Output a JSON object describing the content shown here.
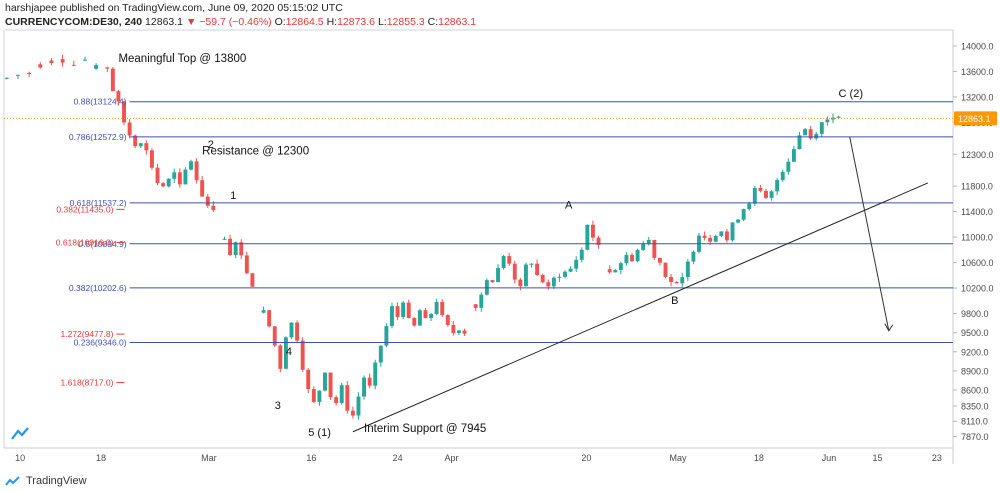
{
  "header": {
    "line1": "harshjapee published on TradingView.com, June 09, 2020 05:15:02 UTC",
    "symbol": "CURRENCYCOM:DE30, 240",
    "last": "12863.1",
    "change_arrow": "▼",
    "change": "−59.7 (−0.46%)",
    "o_label": "O:",
    "o": "12864.5",
    "h_label": "H:",
    "h": "12873.6",
    "l_label": "L:",
    "l": "12855.3",
    "c_label": "C:",
    "c": "12863.1"
  },
  "footer": {
    "brand": "TradingView"
  },
  "chart_data": {
    "type": "candlestick",
    "interval": "240",
    "ylim": [
      7690,
      14250
    ],
    "y_ticks": [
      14000,
      13600,
      13200,
      12800,
      12300,
      11800,
      11400,
      11000,
      10600,
      10200,
      9800,
      9500,
      9200,
      8900,
      8600,
      8350,
      8110,
      7870
    ],
    "y_tick_labels": [
      "14000.0",
      "13600.0",
      "13200.0",
      "12800.0",
      "12300.0",
      "11800.0",
      "11400.0",
      "11000.0",
      "10600.0",
      "10200.0",
      "9800.0",
      "9500.0",
      "9200.0",
      "8900.0",
      "8600.0",
      "8350.0",
      "8110.0",
      "7870.0"
    ],
    "x_ticks": [
      "10",
      "18",
      "Mar",
      "16",
      "24",
      "Apr",
      "20",
      "May",
      "18",
      "Jun",
      "15",
      "23"
    ],
    "last_price_label": "12863.1",
    "last_price": 12863.1,
    "colors": {
      "up": "#26a69a",
      "down": "#ef5350",
      "blue_level": "#3f51b5",
      "red_level": "#e53935",
      "last": "#ff9800",
      "trend": "#222222"
    },
    "close_path": [
      [
        0,
        13500
      ],
      [
        2,
        13550
      ],
      [
        4,
        13560
      ],
      [
        6,
        13650
      ],
      [
        8,
        13720
      ],
      [
        10,
        13760
      ],
      [
        12,
        13720
      ],
      [
        14,
        13790
      ],
      [
        16,
        13720
      ],
      [
        18,
        13640
      ],
      [
        19,
        13300
      ],
      [
        20,
        13100
      ],
      [
        21,
        12800
      ],
      [
        22,
        12600
      ],
      [
        23,
        12450
      ],
      [
        24,
        12500
      ],
      [
        25,
        12350
      ],
      [
        26,
        12100
      ],
      [
        27,
        11850
      ],
      [
        28,
        11800
      ],
      [
        29,
        11900
      ],
      [
        30,
        12000
      ],
      [
        31,
        11800
      ],
      [
        32,
        12050
      ],
      [
        33,
        12200
      ],
      [
        34,
        11900
      ],
      [
        35,
        11650
      ],
      [
        36,
        11500
      ],
      [
        37,
        11450
      ],
      [
        39,
        10950
      ],
      [
        40,
        10700
      ],
      [
        41,
        10950
      ],
      [
        42,
        10700
      ],
      [
        43,
        10450
      ],
      [
        44,
        10250
      ],
      [
        46,
        9850
      ],
      [
        47,
        9600
      ],
      [
        48,
        9300
      ],
      [
        49,
        8950
      ],
      [
        50,
        9450
      ],
      [
        51,
        9650
      ],
      [
        52,
        9400
      ],
      [
        53,
        8950
      ],
      [
        54,
        8600
      ],
      [
        55,
        8400
      ],
      [
        56,
        8600
      ],
      [
        57,
        8900
      ],
      [
        58,
        8500
      ],
      [
        59,
        8400
      ],
      [
        60,
        8650
      ],
      [
        61,
        8300
      ],
      [
        62,
        8200
      ],
      [
        63,
        8500
      ],
      [
        64,
        8800
      ],
      [
        65,
        8650
      ],
      [
        66,
        9000
      ],
      [
        67,
        9300
      ],
      [
        68,
        9600
      ],
      [
        69,
        9900
      ],
      [
        70,
        9750
      ],
      [
        71,
        10000
      ],
      [
        72,
        9700
      ],
      [
        73,
        9600
      ],
      [
        74,
        9850
      ],
      [
        75,
        9700
      ],
      [
        76,
        9800
      ],
      [
        77,
        10000
      ],
      [
        78,
        9750
      ],
      [
        79,
        9600
      ],
      [
        80,
        9500
      ],
      [
        81,
        9560
      ],
      [
        82,
        9500
      ],
      [
        84,
        9900
      ],
      [
        85,
        10100
      ],
      [
        86,
        10350
      ],
      [
        87,
        10300
      ],
      [
        88,
        10500
      ],
      [
        89,
        10700
      ],
      [
        90,
        10600
      ],
      [
        91,
        10350
      ],
      [
        92,
        10200
      ],
      [
        93,
        10550
      ],
      [
        94,
        10600
      ],
      [
        95,
        10400
      ],
      [
        96,
        10300
      ],
      [
        97,
        10200
      ],
      [
        98,
        10350
      ],
      [
        99,
        10400
      ],
      [
        100,
        10450
      ],
      [
        101,
        10500
      ],
      [
        102,
        10650
      ],
      [
        103,
        10800
      ],
      [
        104,
        11200
      ],
      [
        105,
        11000
      ],
      [
        106,
        10850
      ],
      [
        108,
        10450
      ],
      [
        109,
        10500
      ],
      [
        110,
        10600
      ],
      [
        111,
        10700
      ],
      [
        112,
        10650
      ],
      [
        113,
        10800
      ],
      [
        114,
        10900
      ],
      [
        115,
        10950
      ],
      [
        116,
        10700
      ],
      [
        117,
        10600
      ],
      [
        118,
        10400
      ],
      [
        119,
        10300
      ],
      [
        120,
        10250
      ],
      [
        121,
        10350
      ],
      [
        122,
        10600
      ],
      [
        123,
        10800
      ],
      [
        124,
        11050
      ],
      [
        125,
        11000
      ],
      [
        126,
        10950
      ],
      [
        127,
        11050
      ],
      [
        128,
        11100
      ],
      [
        129,
        10950
      ],
      [
        130,
        11200
      ],
      [
        131,
        11300
      ],
      [
        132,
        11450
      ],
      [
        133,
        11550
      ],
      [
        134,
        11750
      ],
      [
        135,
        11700
      ],
      [
        136,
        11600
      ],
      [
        137,
        11700
      ],
      [
        138,
        11900
      ],
      [
        139,
        12050
      ],
      [
        140,
        12200
      ],
      [
        141,
        12400
      ],
      [
        142,
        12600
      ],
      [
        143,
        12700
      ],
      [
        144,
        12550
      ],
      [
        145,
        12650
      ],
      [
        146,
        12800
      ],
      [
        147,
        12850
      ],
      [
        148,
        12900
      ],
      [
        149,
        12863
      ]
    ],
    "levels": [
      {
        "label": "0.88(13124.4)",
        "price": 13124.4,
        "color": "blue",
        "x_from": "c_top"
      },
      {
        "label": "0.786(12572.9)",
        "price": 12572.9,
        "color": "blue",
        "x_from": "c_top"
      },
      {
        "label": "0.618(11537.2)",
        "price": 11537.2,
        "color": "blue",
        "x_from": "c_top"
      },
      {
        "label": "0.5(10894.9)",
        "price": 10894.9,
        "color": "blue",
        "x_from": "c_top"
      },
      {
        "label": "0.382(10202.6)",
        "price": 10202.6,
        "color": "blue",
        "x_from": "c_top"
      },
      {
        "label": "0.236(9346.0)",
        "price": 9346.0,
        "color": "blue",
        "x_from": "c_top"
      },
      {
        "label": "0.382(11435.0)",
        "price": 11435.0,
        "color": "red"
      },
      {
        "label": "0.618(10916.0)",
        "price": 10916.0,
        "color": "red"
      },
      {
        "label": "1.272(9477.8)",
        "price": 9477.8,
        "color": "red"
      },
      {
        "label": "1.618(8717.0)",
        "price": 8717.0,
        "color": "red"
      }
    ],
    "trendline": [
      [
        62,
        7945
      ],
      [
        165,
        11850
      ]
    ],
    "projection_arrow": [
      [
        151,
        12572.9
      ],
      [
        158,
        9530
      ]
    ],
    "annotations": [
      {
        "text": "Meaningful Top @ 13800",
        "price": 13750,
        "at": 20
      },
      {
        "text": "Resistance @ 12300",
        "price": 12300,
        "at": 35
      },
      {
        "text": "Interim Support @ 7945",
        "price": 7945,
        "at": 64
      },
      {
        "text": "2",
        "price": 12400,
        "at": 36
      },
      {
        "text": "1",
        "price": 11600,
        "at": 40
      },
      {
        "text": "4",
        "price": 9150,
        "at": 50
      },
      {
        "text": "3",
        "price": 8300,
        "at": 48
      },
      {
        "text": "5 (1)",
        "price": 7880,
        "at": 54
      },
      {
        "text": "A",
        "price": 11450,
        "at": 100
      },
      {
        "text": "B",
        "price": 9950,
        "at": 119
      },
      {
        "text": "C (2)",
        "price": 13200,
        "at": 149
      }
    ]
  }
}
